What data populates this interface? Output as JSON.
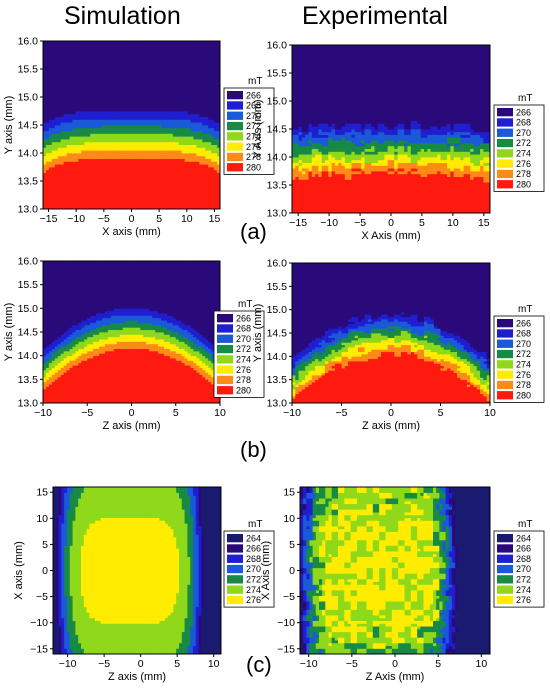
{
  "titles": {
    "left": "Simulation",
    "right": "Experimental"
  },
  "panel_labels": [
    "(a)",
    "(b)",
    "(c)"
  ],
  "chart_data": [
    {
      "type": "heatmap",
      "id": "a-sim",
      "title": "Simulation",
      "xlabel": "X axis (mm)",
      "ylabel": "Y axis (mm)",
      "xlim": [
        -16,
        16
      ],
      "ylim": [
        13.0,
        16.0
      ],
      "xticks": [
        -15,
        -10,
        -5,
        0,
        5,
        10,
        15
      ],
      "yticks": [
        "13.0",
        "13.5",
        "14.0",
        "14.5",
        "15.0",
        "15.5",
        "16.0"
      ],
      "legend": {
        "title": "mT",
        "levels": [
          266,
          268,
          270,
          272,
          274,
          276,
          278,
          280
        ],
        "placement": "right"
      },
      "field": "horizontal-band",
      "center_y": 14.55,
      "edge_drop": 0.25,
      "noise": 0
    },
    {
      "type": "heatmap",
      "id": "a-exp",
      "title": "Experimental",
      "xlabel": "X Axis (mm)",
      "ylabel": "Y Axis (mm)",
      "xlim": [
        -16,
        16
      ],
      "ylim": [
        13.0,
        16.0
      ],
      "xticks": [
        -15,
        -10,
        -5,
        0,
        5,
        10,
        15
      ],
      "yticks": [
        "13.0",
        "13.5",
        "14.0",
        "14.5",
        "15.0",
        "15.5",
        "16.0"
      ],
      "legend": {
        "title": "mT",
        "levels": [
          266,
          268,
          270,
          272,
          274,
          276,
          278,
          280
        ],
        "placement": "right"
      },
      "field": "horizontal-band",
      "center_y": 14.35,
      "edge_drop": 0.1,
      "noise": 0.6
    },
    {
      "type": "heatmap",
      "id": "b-sim",
      "title": "",
      "xlabel": "Z axis (mm)",
      "ylabel": "Y axis (mm)",
      "xlim": [
        -10,
        10
      ],
      "ylim": [
        13.0,
        16.0
      ],
      "xticks": [
        -10,
        -5,
        0,
        5,
        10
      ],
      "yticks": [
        "13.0",
        "13.5",
        "14.0",
        "14.5",
        "15.0",
        "15.5",
        "16.0"
      ],
      "legend": {
        "title": "mT",
        "levels": [
          266,
          268,
          270,
          272,
          274,
          276,
          278,
          280
        ],
        "placement": "right"
      },
      "field": "arch",
      "center_y": 14.8,
      "edge_drop": 0.9,
      "noise": 0
    },
    {
      "type": "heatmap",
      "id": "b-exp",
      "title": "",
      "xlabel": "Z axis (mm)",
      "ylabel": "Y axis (mm)",
      "xlim": [
        -10,
        10
      ],
      "ylim": [
        13.0,
        16.0
      ],
      "xticks": [
        -10,
        -5,
        0,
        5,
        10
      ],
      "yticks": [
        "13.0",
        "13.5",
        "14.0",
        "14.5",
        "15.0",
        "15.5",
        "16.0"
      ],
      "legend": {
        "title": "mT",
        "levels": [
          266,
          268,
          270,
          272,
          274,
          276,
          278,
          280
        ],
        "placement": "right"
      },
      "field": "arch",
      "center_y": 14.7,
      "edge_drop": 1.0,
      "noise": 0.6
    },
    {
      "type": "heatmap",
      "id": "c-sim",
      "title": "",
      "xlabel": "Z axis (mm)",
      "ylabel": "X axis (mm)",
      "xlim": [
        -12,
        11
      ],
      "ylim": [
        -16,
        16
      ],
      "xticks": [
        -10,
        -5,
        0,
        5,
        10
      ],
      "yticks": [
        "-15",
        "-10",
        "-5",
        "0",
        "5",
        "10",
        "15"
      ],
      "legend": {
        "title": "mT",
        "levels": [
          264,
          266,
          268,
          270,
          272,
          274,
          276
        ],
        "placement": "right"
      },
      "field": "plateau",
      "center_x": -1.5,
      "half_width": 10.5,
      "noise": 0
    },
    {
      "type": "heatmap",
      "id": "c-exp",
      "title": "",
      "xlabel": "Z Axis (mm)",
      "ylabel": "X Axis (mm)",
      "xlim": [
        -11,
        11
      ],
      "ylim": [
        -16,
        16
      ],
      "xticks": [
        -10,
        -5,
        0,
        5,
        10
      ],
      "yticks": [
        "-15",
        "-10",
        "-5",
        "0",
        "5",
        "10",
        "15"
      ],
      "legend": {
        "title": "mT",
        "levels": [
          264,
          266,
          268,
          270,
          272,
          274,
          276
        ],
        "placement": "right"
      },
      "field": "plateau",
      "center_x": -2.0,
      "half_width": 9.5,
      "noise": 1.0
    }
  ],
  "colors": {
    "264": "#1a1a70",
    "266": "#2a0a7a",
    "268": "#1f1fd0",
    "270": "#1a5ad8",
    "272": "#178a45",
    "274": "#8fd81a",
    "276": "#ffec00",
    "278": "#ff8a1a",
    "280": "#ff1a10"
  }
}
